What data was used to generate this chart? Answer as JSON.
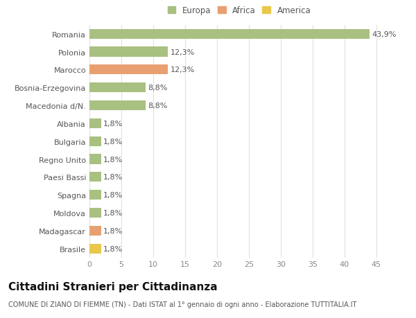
{
  "categories": [
    "Brasile",
    "Madagascar",
    "Moldova",
    "Spagna",
    "Paesi Bassi",
    "Regno Unito",
    "Bulgaria",
    "Albania",
    "Macedonia d/N.",
    "Bosnia-Erzegovina",
    "Marocco",
    "Polonia",
    "Romania"
  ],
  "values": [
    1.8,
    1.8,
    1.8,
    1.8,
    1.8,
    1.8,
    1.8,
    1.8,
    8.8,
    8.8,
    12.3,
    12.3,
    43.9
  ],
  "labels": [
    "1,8%",
    "1,8%",
    "1,8%",
    "1,8%",
    "1,8%",
    "1,8%",
    "1,8%",
    "1,8%",
    "8,8%",
    "8,8%",
    "12,3%",
    "12,3%",
    "43,9%"
  ],
  "colors": [
    "#e8c84a",
    "#e8a070",
    "#a8c080",
    "#a8c080",
    "#a8c080",
    "#a8c080",
    "#a8c080",
    "#a8c080",
    "#a8c080",
    "#a8c080",
    "#e8a070",
    "#a8c080",
    "#a8c080"
  ],
  "legend_labels": [
    "Europa",
    "Africa",
    "America"
  ],
  "legend_colors": [
    "#a8c080",
    "#e8a070",
    "#e8c84a"
  ],
  "title": "Cittadini Stranieri per Cittadinanza",
  "subtitle": "COMUNE DI ZIANO DI FIEMME (TN) - Dati ISTAT al 1° gennaio di ogni anno - Elaborazione TUTTITALIA.IT",
  "xlim": [
    0,
    47
  ],
  "xticks": [
    0,
    5,
    10,
    15,
    20,
    25,
    30,
    35,
    40,
    45
  ],
  "background_color": "#ffffff",
  "grid_color": "#e0e0e0",
  "bar_height": 0.55,
  "label_fontsize": 8,
  "tick_fontsize": 8,
  "title_fontsize": 11,
  "subtitle_fontsize": 7
}
